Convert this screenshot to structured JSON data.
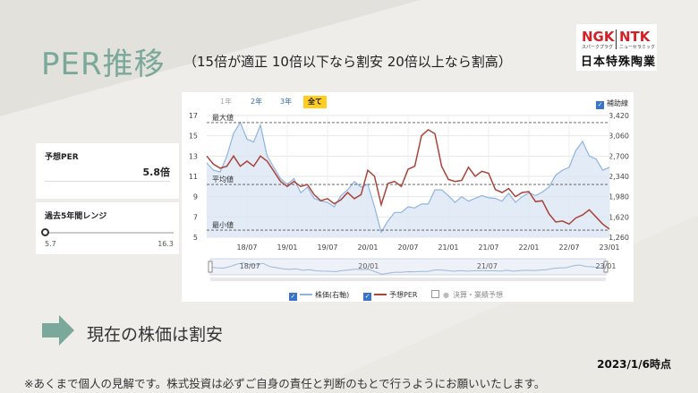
{
  "slide": {
    "title": "PER推移",
    "subtitle": "（15倍が適正 10倍以下なら割安 20倍以上なら割高）",
    "conclusion": "現在の株価は割安",
    "date": "2023/1/6時点",
    "disclaimer": "※あくまで個人の見解です。株式投資は必ずご自身の責任と判断のもとで行うようにお願いいたします。"
  },
  "logo": {
    "ngk": "NGK",
    "ntk": "NTK",
    "ngk_sub": "スパークプラグ",
    "ntk_sub": "ニューセラミック",
    "company": "日本特殊陶業"
  },
  "per_panel": {
    "label": "予想PER",
    "value": "5.8倍"
  },
  "range_panel": {
    "label": "過去5年間レンジ",
    "min": "5.7",
    "max": "16.3",
    "position": 0.0
  },
  "chart_tabs": [
    {
      "label": "1年",
      "state": "dim"
    },
    {
      "label": "2年",
      "state": "normal"
    },
    {
      "label": "3年",
      "state": "normal"
    },
    {
      "label": "全て",
      "state": "active"
    }
  ],
  "chart_options": {
    "aux_label": "補助線",
    "aux_checked": true
  },
  "colors": {
    "price": "#8fb4e0",
    "per": "#a8443a",
    "accent": "#7aa89a",
    "tab_active": "#ffcc22"
  },
  "chart_data": {
    "type": "line",
    "title": "",
    "x_ticks": [
      "18/07",
      "19/01",
      "19/07",
      "20/01",
      "20/07",
      "21/01",
      "21/07",
      "22/01",
      "22/07",
      "23/01"
    ],
    "navigator_ticks": [
      "18/07",
      "20/01",
      "21/07",
      "23/01"
    ],
    "y_left_ticks": [
      "5",
      "7",
      "9",
      "11",
      "13",
      "15",
      "17"
    ],
    "y_left_range": [
      5,
      17
    ],
    "y_right_ticks": [
      "1,260",
      "1,620",
      "1,980",
      "2,340",
      "2,700",
      "3,060",
      "3,420"
    ],
    "y_right_range": [
      1260,
      3420
    ],
    "reference_lines": [
      {
        "label": "最大値",
        "value": 16.3
      },
      {
        "label": "平均値",
        "value": 10.2
      },
      {
        "label": "最小値",
        "value": 5.7
      }
    ],
    "legend": [
      {
        "label": "株価(右軸)",
        "checked": true
      },
      {
        "label": "予想PER",
        "checked": true
      },
      {
        "label": "決算・業績予想",
        "checked": false
      }
    ],
    "series": [
      {
        "name": "株価(右軸)",
        "axis": "right",
        "points": [
          [
            "18/01",
            2580
          ],
          [
            "18/02",
            2450
          ],
          [
            "18/03",
            2420
          ],
          [
            "18/04",
            2700
          ],
          [
            "18/05",
            3100
          ],
          [
            "18/06",
            3300
          ],
          [
            "18/07",
            3000
          ],
          [
            "18/08",
            2950
          ],
          [
            "18/09",
            3250
          ],
          [
            "18/10",
            2700
          ],
          [
            "18/11",
            2500
          ],
          [
            "18/12",
            2300
          ],
          [
            "19/01",
            2200
          ],
          [
            "19/02",
            2300
          ],
          [
            "19/03",
            2050
          ],
          [
            "19/04",
            2150
          ],
          [
            "19/05",
            1950
          ],
          [
            "19/06",
            1900
          ],
          [
            "19/07",
            1880
          ],
          [
            "19/08",
            1800
          ],
          [
            "19/09",
            2000
          ],
          [
            "19/10",
            2100
          ],
          [
            "19/11",
            2250
          ],
          [
            "19/12",
            2150
          ],
          [
            "20/01",
            2200
          ],
          [
            "20/02",
            1800
          ],
          [
            "20/03",
            1350
          ],
          [
            "20/04",
            1550
          ],
          [
            "20/05",
            1700
          ],
          [
            "20/06",
            1700
          ],
          [
            "20/07",
            1800
          ],
          [
            "20/08",
            1780
          ],
          [
            "20/09",
            1850
          ],
          [
            "20/10",
            1850
          ],
          [
            "20/11",
            2100
          ],
          [
            "20/12",
            2100
          ],
          [
            "21/01",
            2000
          ],
          [
            "21/02",
            1880
          ],
          [
            "21/03",
            1980
          ],
          [
            "21/04",
            1900
          ],
          [
            "21/05",
            1950
          ],
          [
            "21/06",
            2000
          ],
          [
            "21/07",
            1960
          ],
          [
            "21/08",
            1950
          ],
          [
            "21/09",
            1900
          ],
          [
            "21/10",
            2040
          ],
          [
            "21/11",
            1880
          ],
          [
            "21/12",
            1980
          ],
          [
            "22/01",
            2050
          ],
          [
            "22/02",
            2000
          ],
          [
            "22/03",
            2060
          ],
          [
            "22/04",
            2150
          ],
          [
            "22/05",
            2360
          ],
          [
            "22/06",
            2450
          ],
          [
            "22/07",
            2500
          ],
          [
            "22/08",
            2800
          ],
          [
            "22/09",
            2960
          ],
          [
            "22/10",
            2700
          ],
          [
            "22/11",
            2650
          ],
          [
            "22/12",
            2450
          ],
          [
            "23/01",
            2500
          ]
        ]
      },
      {
        "name": "予想PER",
        "axis": "left",
        "points": [
          [
            "18/01",
            13.0
          ],
          [
            "18/02",
            12.2
          ],
          [
            "18/03",
            11.8
          ],
          [
            "18/04",
            12.0
          ],
          [
            "18/05",
            13.0
          ],
          [
            "18/06",
            12.0
          ],
          [
            "18/07",
            12.5
          ],
          [
            "18/08",
            12.0
          ],
          [
            "18/09",
            13.0
          ],
          [
            "18/10",
            12.5
          ],
          [
            "18/11",
            11.5
          ],
          [
            "18/12",
            10.5
          ],
          [
            "19/01",
            10.0
          ],
          [
            "19/02",
            10.5
          ],
          [
            "19/03",
            10.0
          ],
          [
            "19/04",
            10.2
          ],
          [
            "19/05",
            9.2
          ],
          [
            "19/06",
            8.6
          ],
          [
            "19/07",
            8.8
          ],
          [
            "19/08",
            8.3
          ],
          [
            "19/09",
            8.7
          ],
          [
            "19/10",
            9.4
          ],
          [
            "19/11",
            8.8
          ],
          [
            "19/12",
            9.2
          ],
          [
            "20/01",
            11.6
          ],
          [
            "20/02",
            11.0
          ],
          [
            "20/03",
            8.2
          ],
          [
            "20/04",
            10.3
          ],
          [
            "20/05",
            10.5
          ],
          [
            "20/06",
            10.0
          ],
          [
            "20/07",
            11.7
          ],
          [
            "20/08",
            12.0
          ],
          [
            "20/09",
            15.0
          ],
          [
            "20/10",
            15.6
          ],
          [
            "20/11",
            15.2
          ],
          [
            "20/12",
            12.0
          ],
          [
            "21/01",
            10.7
          ],
          [
            "21/02",
            10.5
          ],
          [
            "21/03",
            10.6
          ],
          [
            "21/04",
            11.9
          ],
          [
            "21/05",
            11.0
          ],
          [
            "21/06",
            11.5
          ],
          [
            "21/07",
            11.3
          ],
          [
            "21/08",
            9.7
          ],
          [
            "21/09",
            9.4
          ],
          [
            "21/10",
            9.8
          ],
          [
            "21/11",
            9.0
          ],
          [
            "21/12",
            9.4
          ],
          [
            "22/01",
            9.5
          ],
          [
            "22/02",
            8.5
          ],
          [
            "22/03",
            8.6
          ],
          [
            "22/04",
            7.3
          ],
          [
            "22/05",
            6.5
          ],
          [
            "22/06",
            6.6
          ],
          [
            "22/07",
            6.3
          ],
          [
            "22/08",
            6.9
          ],
          [
            "22/09",
            7.2
          ],
          [
            "22/10",
            7.7
          ],
          [
            "22/11",
            7.0
          ],
          [
            "22/12",
            6.3
          ],
          [
            "23/01",
            5.8
          ]
        ]
      }
    ]
  }
}
